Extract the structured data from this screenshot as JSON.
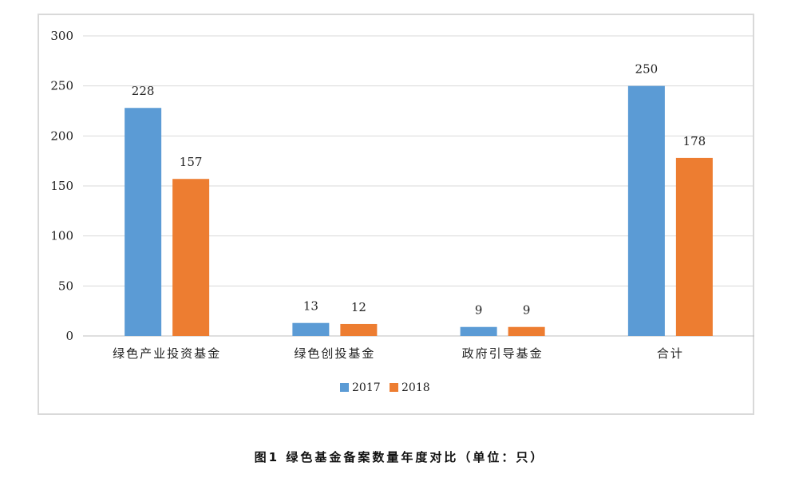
{
  "caption": "图1 绿色基金备案数量年度对比（单位：只）",
  "chart_data": {
    "type": "bar",
    "categories": [
      "绿色产业投资基金",
      "绿色创投基金",
      "政府引导基金",
      "合计"
    ],
    "series": [
      {
        "name": "2017",
        "values": [
          228,
          13,
          9,
          250
        ],
        "color": "#5b9bd5"
      },
      {
        "name": "2018",
        "values": [
          157,
          12,
          9,
          178
        ],
        "color": "#ed7d31"
      }
    ],
    "ylim": [
      0,
      300
    ],
    "yticks": [
      0,
      50,
      100,
      150,
      200,
      250,
      300
    ],
    "title": "",
    "xlabel": "",
    "ylabel": "",
    "grid": true,
    "legend_position": "bottom"
  }
}
